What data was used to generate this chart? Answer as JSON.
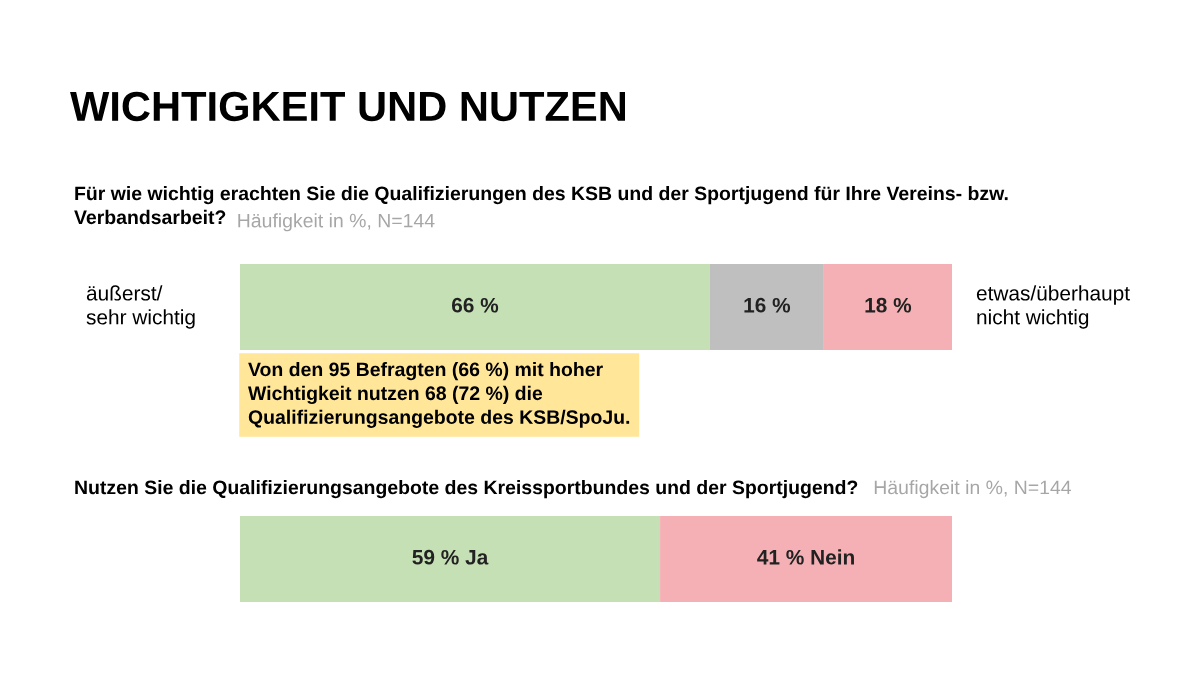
{
  "chart_data": [
    {
      "type": "bar",
      "orientation": "horizontal",
      "stacked": true,
      "title": "WICHTIGKEIT UND NUTZEN",
      "subtitle": "Für wie wichtig erachten Sie die Qualifizierungen des KSB und der Sportjugend für Ihre Vereins- bzw.\nVerbandsarbeit?",
      "categories": [
        null
      ],
      "xlim": [
        0,
        100
      ],
      "tick_labels": false,
      "series": [
        {
          "color": "#c5e0b4",
          "values": [
            66
          ],
          "value_labels": [
            "66 %"
          ]
        },
        {
          "color": "#bfbfbf",
          "values": [
            16
          ],
          "value_labels": [
            "16 %"
          ]
        },
        {
          "color": "#f4b0b4",
          "values": [
            18
          ],
          "value_labels": [
            "18 %"
          ]
        }
      ],
      "annotations": [
        "Häufigkeit in %, N=144",
        "äußerst/\nsehr wichtig",
        "etwas/überhaupt\nnicht wichtig",
        "Von den 95 Befragten (66 %) mit hoher\nWichtigkeit nutzen 68 (72 %) die\nQualifizierungsangebote des KSB/SpoJu."
      ]
    },
    {
      "type": "bar",
      "orientation": "horizontal",
      "stacked": true,
      "subtitle": "Nutzen Sie die Qualifizierungsangebote des Kreissportbundes und der Sportjugend?",
      "categories": [
        null
      ],
      "xlim": [
        0,
        100
      ],
      "tick_labels": false,
      "series": [
        {
          "color": "#c5e0b4",
          "values": [
            59
          ],
          "value_labels": [
            "59 % Ja"
          ]
        },
        {
          "color": "#f4b0b4",
          "values": [
            41
          ],
          "value_labels": [
            "41 % Nein"
          ]
        }
      ],
      "annotations": [
        "Häufigkeit in %, N=144"
      ]
    }
  ]
}
